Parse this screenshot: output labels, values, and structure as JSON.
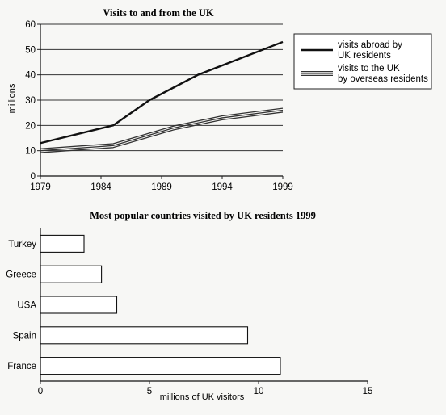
{
  "chart_data": [
    {
      "type": "line",
      "title": "Visits to and from the UK",
      "ylabel": "millions",
      "xlabel": "",
      "x_ticks": [
        "1979",
        "1984",
        "1989",
        "1994",
        "1999"
      ],
      "xlim": [
        1979,
        1999
      ],
      "ylim": [
        0,
        60
      ],
      "y_ticks": [
        0,
        10,
        20,
        30,
        40,
        50,
        60
      ],
      "grid": "horizontal",
      "legend_position": "right",
      "series": [
        {
          "name": "visits abroad by UK residents",
          "style": "single",
          "color": "#111111",
          "x": [
            1979,
            1985,
            1988,
            1992,
            1999
          ],
          "y": [
            13,
            20,
            30,
            40,
            53
          ]
        },
        {
          "name": "visits to the UK by overseas residents",
          "style": "triple",
          "color": "#333333",
          "x": [
            1979,
            1985,
            1990,
            1994,
            1999
          ],
          "y": [
            10,
            12,
            19,
            23,
            26
          ]
        }
      ]
    },
    {
      "type": "bar",
      "orientation": "horizontal",
      "title": "Most popular countries visited by UK residents 1999",
      "xlabel": "millions of UK visitors",
      "ylabel": "",
      "categories": [
        "Turkey",
        "Greece",
        "USA",
        "Spain",
        "France"
      ],
      "values": [
        2,
        2.8,
        3.5,
        9.5,
        11
      ],
      "xlim": [
        0,
        15
      ],
      "x_ticks": [
        "0",
        "5",
        "10",
        "15"
      ]
    }
  ]
}
